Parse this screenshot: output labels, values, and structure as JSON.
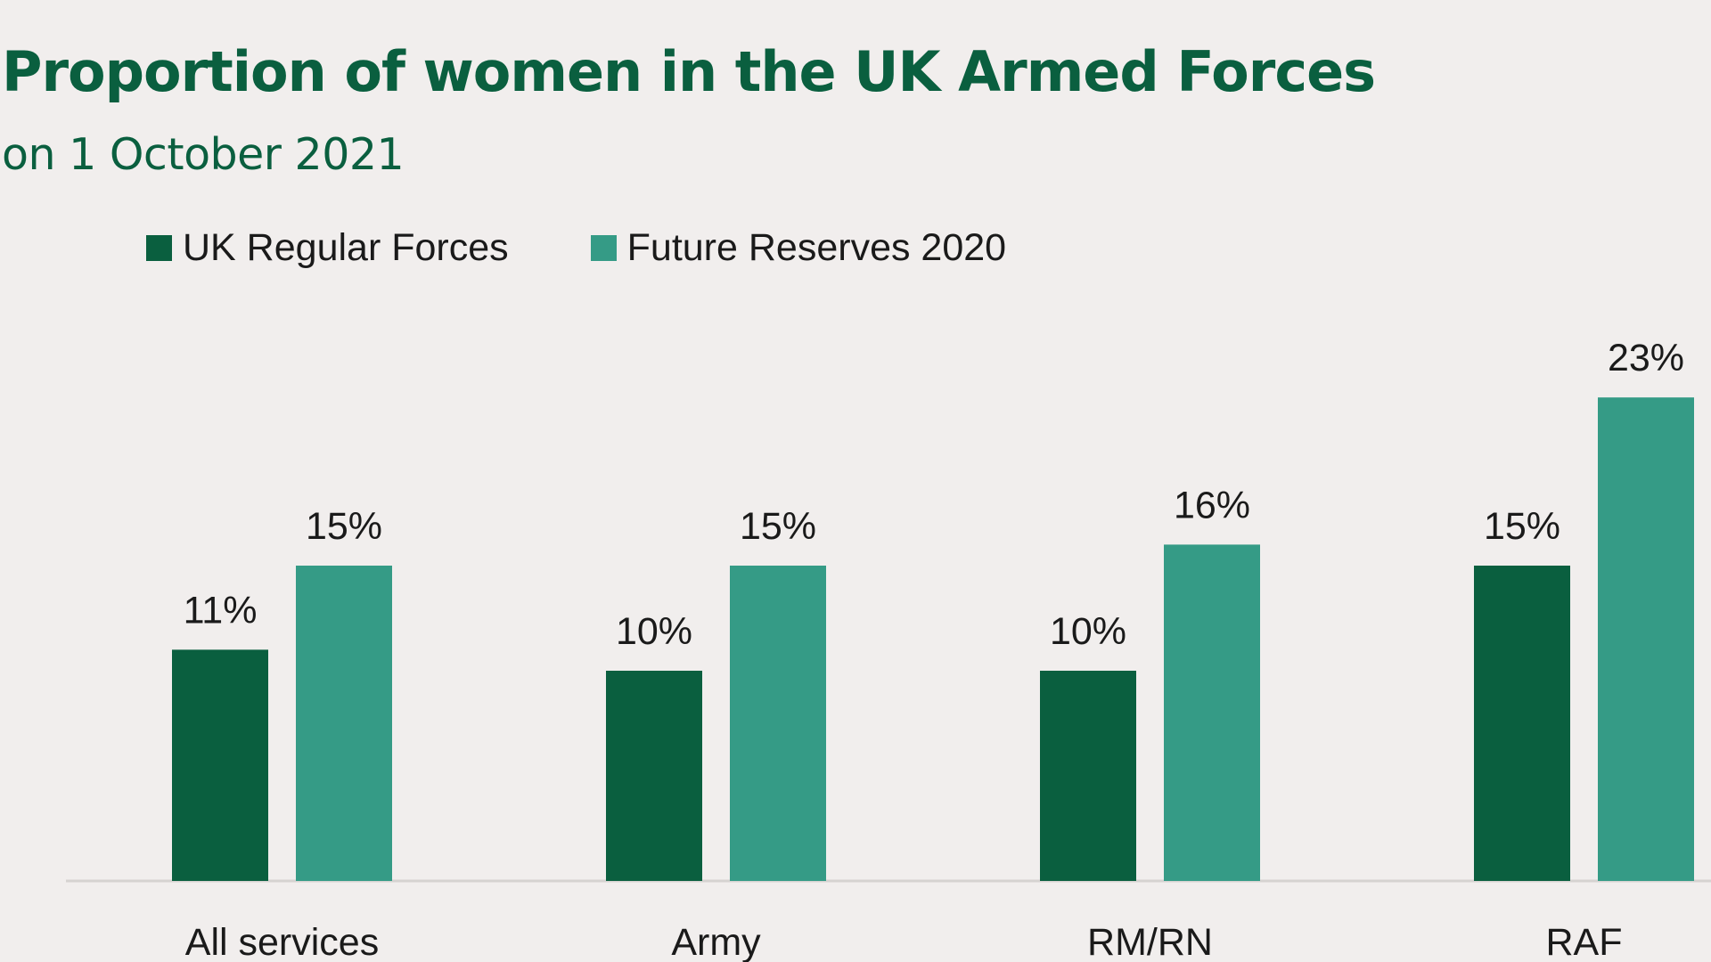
{
  "chart_data": {
    "type": "bar",
    "title": "Proportion of women in the UK Armed Forces",
    "subtitle": "on 1 October 2021",
    "categories": [
      "All services",
      "Army",
      "RM/RN",
      "RAF"
    ],
    "series": [
      {
        "name": "UK Regular Forces",
        "color": "#0a5f3f",
        "values": [
          11,
          10,
          10,
          15
        ],
        "labels": [
          "11%",
          "10%",
          "10%",
          "15%"
        ]
      },
      {
        "name": "Future Reserves 2020",
        "color": "#359b86",
        "values": [
          15,
          15,
          16,
          23
        ],
        "labels": [
          "15%",
          "15%",
          "16%",
          "23%"
        ]
      }
    ],
    "xlabel": "",
    "ylabel": "",
    "ylim": [
      0,
      25
    ],
    "grid": false,
    "legend": "top-left"
  }
}
